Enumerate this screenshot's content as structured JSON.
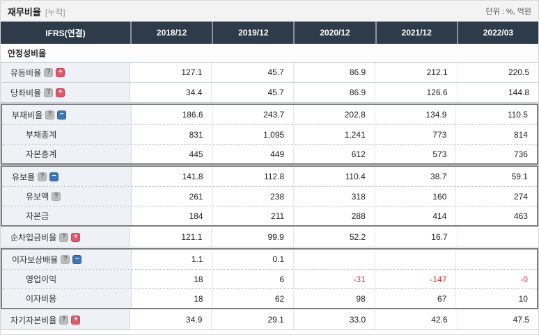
{
  "page": {
    "title": "재무비율",
    "title_suffix": "[누적]",
    "unit_label": "단위 : %, 억원"
  },
  "colors": {
    "header_bg": "#2d3b4b",
    "label_col_bg": "#eef1f6",
    "group_border": "#7e7e7e",
    "negative_value": "#e03131",
    "plus_icon": "#e2596b",
    "minus_icon": "#3f74b5",
    "help_icon": "#bcbcbc"
  },
  "icons": {
    "help_glyph": "?",
    "plus_glyph": "+",
    "minus_glyph": "−"
  },
  "table": {
    "header": {
      "first_col": "IFRS(연결)",
      "periods": [
        "2018/12",
        "2019/12",
        "2020/12",
        "2021/12",
        "2022/03"
      ]
    },
    "section_title": "안정성비율",
    "rows": [
      {
        "label": "유동비율",
        "icons": [
          "help",
          "plus"
        ],
        "indent": 0,
        "group": null,
        "values": [
          "127.1",
          "45.7",
          "86.9",
          "212.1",
          "220.5"
        ]
      },
      {
        "label": "당좌비율",
        "icons": [
          "help",
          "plus"
        ],
        "indent": 0,
        "group": null,
        "values": [
          "34.4",
          "45.7",
          "86.9",
          "126.6",
          "144.8"
        ]
      },
      {
        "label": "부채비율",
        "icons": [
          "help",
          "minus"
        ],
        "indent": 0,
        "group": "start",
        "values": [
          "186.6",
          "243.7",
          "202.8",
          "134.9",
          "110.5"
        ]
      },
      {
        "label": "부채총계",
        "icons": [],
        "indent": 1,
        "group": "mid",
        "values": [
          "831",
          "1,095",
          "1,241",
          "773",
          "814"
        ]
      },
      {
        "label": "자본총계",
        "icons": [],
        "indent": 1,
        "group": "end",
        "values": [
          "445",
          "449",
          "612",
          "573",
          "736"
        ]
      },
      {
        "label": "유보율",
        "icons": [
          "help",
          "minus"
        ],
        "indent": 0,
        "group": "start",
        "values": [
          "141.8",
          "112.8",
          "110.4",
          "38.7",
          "59.1"
        ]
      },
      {
        "label": "유보액",
        "icons": [
          "help"
        ],
        "indent": 1,
        "group": "mid",
        "values": [
          "261",
          "238",
          "318",
          "160",
          "274"
        ]
      },
      {
        "label": "자본금",
        "icons": [],
        "indent": 1,
        "group": "end",
        "values": [
          "184",
          "211",
          "288",
          "414",
          "463"
        ]
      },
      {
        "label": "순차입금비율",
        "icons": [
          "help",
          "plus"
        ],
        "indent": 0,
        "group": null,
        "values": [
          "121.1",
          "99.9",
          "52.2",
          "16.7",
          ""
        ]
      },
      {
        "label": "이자보상배율",
        "icons": [
          "help",
          "minus"
        ],
        "indent": 0,
        "group": "start",
        "values": [
          "1.1",
          "0.1",
          "",
          "",
          ""
        ]
      },
      {
        "label": "영업이익",
        "icons": [],
        "indent": 1,
        "group": "mid",
        "values": [
          "18",
          "6",
          "-31",
          "-147",
          "-0"
        ]
      },
      {
        "label": "이자비용",
        "icons": [],
        "indent": 1,
        "group": "end",
        "values": [
          "18",
          "62",
          "98",
          "67",
          "10"
        ]
      },
      {
        "label": "자기자본비율",
        "icons": [
          "help",
          "plus"
        ],
        "indent": 0,
        "group": null,
        "values": [
          "34.9",
          "29.1",
          "33.0",
          "42.6",
          "47.5"
        ]
      }
    ]
  }
}
